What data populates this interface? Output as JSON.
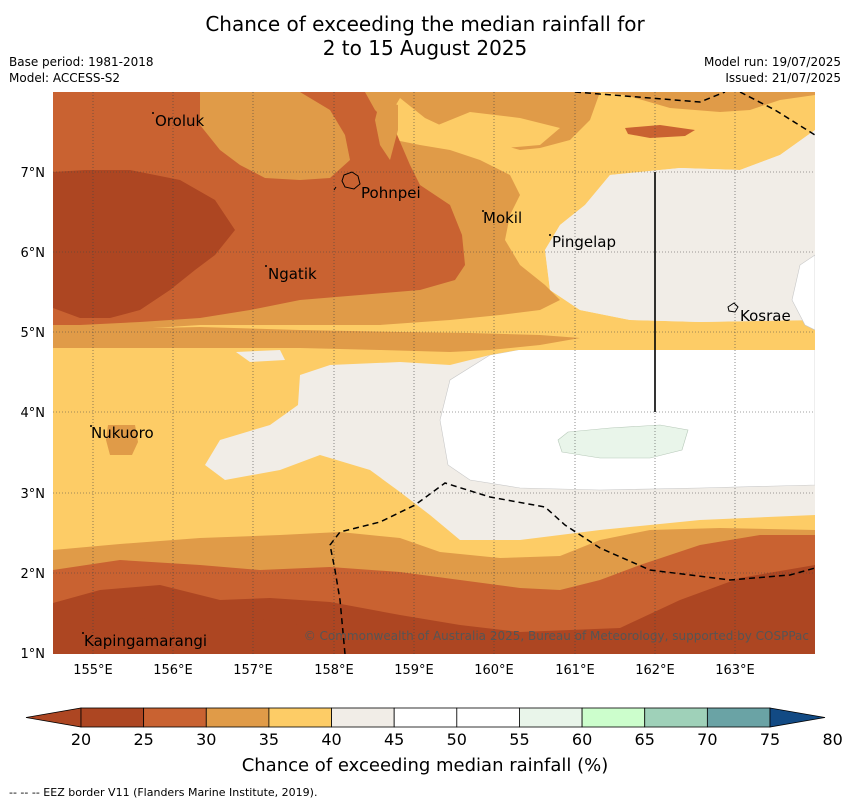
{
  "header": {
    "title_line1": "Chance of exceeding the median rainfall for",
    "title_line2": "2 to 15 August 2025",
    "base_period": "Base period: 1981-2018",
    "model": "Model: ACCESS-S2",
    "model_run": "Model run: 19/07/2025",
    "issued": "Issued: 21/07/2025"
  },
  "map": {
    "lon_ticks": [
      "155°E",
      "156°E",
      "157°E",
      "158°E",
      "159°E",
      "160°E",
      "161°E",
      "162°E",
      "163°E"
    ],
    "lat_ticks": [
      "7°N",
      "6°N",
      "5°N",
      "4°N",
      "3°N",
      "2°N",
      "1°N"
    ],
    "places": [
      "Oroluk",
      "Pohnpei",
      "Mokil",
      "Pingelap",
      "Ngatik",
      "Kosrae",
      "Nukuoro",
      "Kapingamarangi"
    ],
    "copyright": "© Commonwealth of Australia 2025, Bureau of Meteorology, supported by COSPPac"
  },
  "colorbar": {
    "ticks": [
      "20",
      "25",
      "30",
      "35",
      "40",
      "45",
      "50",
      "55",
      "60",
      "65",
      "70",
      "75",
      "80"
    ],
    "colors": [
      "#ad4622",
      "#c96231",
      "#e09b48",
      "#fdcc66",
      "#f1ede7",
      "#ffffff",
      "#ffffff",
      "#e9f5ea",
      "#ccfecc",
      "#9fd1b9",
      "#6aa3a5",
      "#40789a",
      "#124a84"
    ],
    "label": "Chance of exceeding median rainfall (%)"
  },
  "footnote": "--  --  -- EEZ border V11 (Flanders Marine Institute, 2019)."
}
